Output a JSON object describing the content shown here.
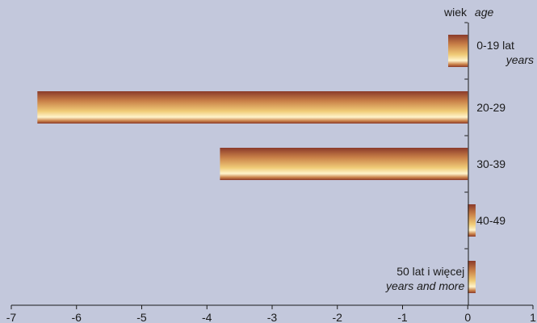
{
  "chart_data": {
    "type": "bar",
    "orientation": "horizontal",
    "axis_title": {
      "pl": "wiek",
      "en": "age"
    },
    "categories": [
      {
        "pl": "0-19 lat",
        "en": "years"
      },
      {
        "pl": "20-29",
        "en": ""
      },
      {
        "pl": "30-39",
        "en": ""
      },
      {
        "pl": "40-49",
        "en": ""
      },
      {
        "pl": "50 lat i więcej",
        "en": "years and  more"
      }
    ],
    "values": [
      -0.3,
      -6.6,
      -3.8,
      0.12,
      0.12
    ],
    "xlim": [
      -7,
      1
    ],
    "xticks": [
      -7,
      -6,
      -5,
      -4,
      -3,
      -2,
      -1,
      0,
      1
    ],
    "grid": false,
    "colors": {
      "background": "#c3c8dc",
      "bar_dark": "#8a3a2a",
      "bar_mid": "#d9a25a",
      "bar_light": "#fff4cc",
      "axis": "#1a1a1a"
    }
  }
}
